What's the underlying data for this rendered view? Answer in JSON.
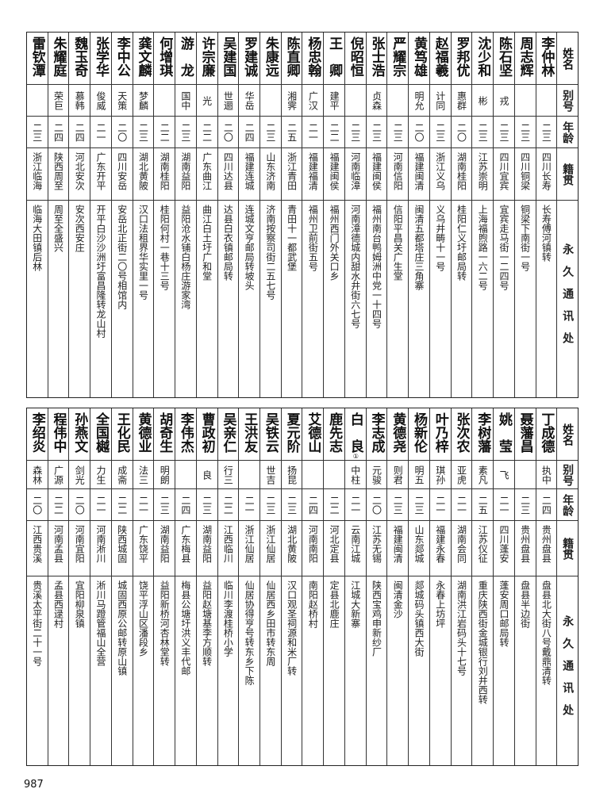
{
  "headers": {
    "name": "姓名",
    "alias": "别号",
    "age": "年龄",
    "native": "籍贯",
    "addr": "永久通讯处"
  },
  "tables": [
    {
      "rows": [
        {
          "name": "李仲林",
          "alias": "",
          "age": "二三",
          "native": "四川长寿",
          "addr": "长寿傅河镇转"
        },
        {
          "name": "周志辉",
          "alias": "",
          "age": "二三",
          "native": "四川铜梁",
          "addr": "铜梁下南街一号"
        },
        {
          "name": "陈石坚",
          "alias": "戎",
          "age": "二三",
          "native": "四川宜宾",
          "addr": "宜宾走马街一二四号"
        },
        {
          "name": "沈少和",
          "alias": "彬",
          "age": "二三",
          "native": "江苏崇明",
          "addr": "上海福煦路一六二号"
        },
        {
          "name": "罗邦优",
          "alias": "惠群",
          "age": "二〇",
          "native": "湖南桂阳",
          "addr": "桂阳仁义圩邮局转"
        },
        {
          "name": "赵福羲",
          "alias": "计同",
          "age": "二三",
          "native": "浙江义乌",
          "addr": "义乌井畴十一号"
        },
        {
          "name": "黄笃雄",
          "alias": "明允",
          "age": "二〇",
          "native": "福建闽清",
          "addr": "闽清五都塔庄三角寨"
        },
        {
          "name": "严耀宗",
          "alias": "",
          "age": "二三",
          "native": "河南信阳",
          "addr": "信阳平昌关广生堂"
        },
        {
          "name": "张士浩",
          "alias": "贞森",
          "age": "二三",
          "native": "福建闽侯",
          "addr": "福州南台鸭姆洲中党一十四号"
        },
        {
          "name": "倪昭恒",
          "alias": "",
          "age": "二三",
          "native": "河南临漳",
          "addr": "河南漳德城内甜水井街六七号"
        },
        {
          "name": "王　卿",
          "alias": "建平",
          "age": "二二",
          "native": "福建闽侯",
          "addr": "福州西门外关口乡"
        },
        {
          "name": "杨忠翰",
          "alias": "广汉",
          "age": "二一",
          "native": "福建福清",
          "addr": "福州卫前街五号"
        },
        {
          "name": "陈直卿",
          "alias": "湘霁",
          "age": "二五",
          "native": "浙江青田",
          "addr": "青田十一都武堡"
        },
        {
          "name": "朱康远",
          "alias": "",
          "age": "二三",
          "native": "山东济南",
          "addr": "济南按察司街二五七号"
        },
        {
          "name": "罗建诚",
          "alias": "华岳",
          "age": "二四",
          "native": "福建连城",
          "addr": "连城文亨邮局转坡头"
        },
        {
          "name": "吴建国",
          "alias": "世逦",
          "age": "二〇",
          "native": "四川达县",
          "addr": "达县白衣镇邮局转"
        },
        {
          "name": "许宗廉",
          "alias": "光",
          "age": "二二",
          "native": "广东曲江",
          "addr": "曲江白土圩广和堂"
        },
        {
          "name": "游　龙",
          "alias": "国中",
          "age": "二三",
          "native": "湖南益阳",
          "addr": "益阳沧水铺白杨庄游家湾"
        },
        {
          "name": "何增琪",
          "alias": "",
          "age": "二二",
          "native": "湖南桂阳",
          "addr": "桂阳何村一巷十三号"
        },
        {
          "name": "龚文麟",
          "alias": "梦麟",
          "age": "二三",
          "native": "湖北黄陂",
          "addr": "汉口法租界华实里一号"
        },
        {
          "name": "李中公",
          "alias": "天策",
          "age": "二〇",
          "native": "四川安岳",
          "addr": "安岳北正街二〇号相馆内"
        },
        {
          "name": "张学华",
          "alias": "俊威",
          "age": "二一",
          "native": "广东开平",
          "addr": "开平白沙沙洲圩富昌隆转龙山村"
        },
        {
          "name": "魏玉奇",
          "alias": "慕韩",
          "age": "二四",
          "native": "河北安次",
          "addr": "安次西安庄"
        },
        {
          "name": "朱耀庭",
          "alias": "荣巨",
          "age": "二四",
          "native": "陕西周至",
          "addr": "周至全盛兴"
        },
        {
          "name": "雷钦潭",
          "alias": "",
          "age": "二三",
          "native": "浙江临海",
          "addr": "临海大田镇后林"
        }
      ]
    },
    {
      "rows": [
        {
          "name": "丁成德",
          "alias": "执中",
          "age": "二四",
          "native": "贵州盘县",
          "addr": "盘县北大街八号戴鼎清转"
        },
        {
          "name": "聂藩昌",
          "alias": "",
          "age": "二三",
          "native": "贵州盘县",
          "addr": "盘县半边街"
        },
        {
          "name": "姚　莹",
          "alias": "飞",
          "age": "二一",
          "native": "四川蓬安",
          "addr": "蓬安周口邮局转"
        },
        {
          "name": "李树藩",
          "alias": "素凡",
          "age": "二五",
          "native": "江苏仪征",
          "addr": "重庆陕西街金城银行刘井西转"
        },
        {
          "name": "张次农",
          "alias": "亚虎",
          "age": "二一",
          "native": "湖南会同",
          "addr": "湖南洪江岩码头十七号"
        },
        {
          "name": "叶乃梓",
          "alias": "琪孙",
          "age": "二一",
          "native": "福建永春",
          "addr": "永春上坊坪"
        },
        {
          "name": "杨新伦",
          "alias": "明五",
          "age": "二三",
          "native": "山东郯城",
          "addr": "郯城码头镇西大街"
        },
        {
          "name": "黄德尧",
          "alias": "则君",
          "age": "二三",
          "native": "福建闽清",
          "addr": "闽清金沙"
        },
        {
          "name": "李志成",
          "alias": "元骏",
          "age": "二〇",
          "native": "江苏无锡",
          "addr": "陕西宝鸡申新纱厂"
        },
        {
          "name": "白　良",
          "note": "①",
          "alias": "中柱",
          "age": "二一",
          "native": "云南江城",
          "addr": "江城大新寨"
        },
        {
          "name": "鹿先志",
          "alias": "",
          "age": "二二",
          "native": "河北定县",
          "addr": "定县北鹿庄"
        },
        {
          "name": "艾德山",
          "alias": "",
          "age": "二四",
          "native": "河南南阳",
          "addr": "南阳赵桥村"
        },
        {
          "name": "夏元阶",
          "alias": "扬昆",
          "age": "二三",
          "native": "湖北黄陂",
          "addr": "汉口观圣祠源和米厂转"
        },
        {
          "name": "吴铁云",
          "alias": "世吉",
          "age": "二三",
          "native": "浙江仙居",
          "addr": "仙居西乡田市转东周"
        },
        {
          "name": "王洪友",
          "alias": "",
          "age": "二一",
          "native": "浙江仙居",
          "addr": "仙居协得亨号转东乡下陈"
        },
        {
          "name": "吴亲仁",
          "alias": "行三",
          "age": "二二",
          "native": "江西临川",
          "addr": "临川李渡桂桥小学"
        },
        {
          "name": "曹政初",
          "alias": "良",
          "age": "二三",
          "native": "湖南益阳",
          "addr": "益阳赵塘基李方顺转"
        },
        {
          "name": "李伟杰",
          "alias": "",
          "age": "二四",
          "native": "广东梅县",
          "addr": "梅县公塘圩洪义丰代邮"
        },
        {
          "name": "胡奇生",
          "alias": "明朗",
          "age": "二三",
          "native": "湖南益阳",
          "addr": "益阳新桥河杏林堂转"
        },
        {
          "name": "黄德业",
          "alias": "法三",
          "age": "二一",
          "native": "广东饶平",
          "addr": "饶平浮山区潘段乡"
        },
        {
          "name": "王化民",
          "alias": "成斋",
          "age": "二二",
          "native": "陕西城固",
          "addr": "城固西原公邮转原山镇"
        },
        {
          "name": "全国樾",
          "alias": "力生",
          "age": "二一",
          "native": "河南淅川",
          "addr": "淅川马蹬管福山全营"
        },
        {
          "name": "孙燕文",
          "alias": "剑光",
          "age": "二〇",
          "native": "河南宜阳",
          "addr": "宜阳柳泉镇"
        },
        {
          "name": "程伟中",
          "alias": "广源",
          "age": "二二",
          "native": "河南孟县",
          "addr": "孟县西逯村"
        },
        {
          "name": "李绍炎",
          "alias": "森林",
          "age": "二〇",
          "native": "江西贵溪",
          "addr": "贵溪太平街二十一号"
        }
      ]
    }
  ],
  "page_number": "987"
}
